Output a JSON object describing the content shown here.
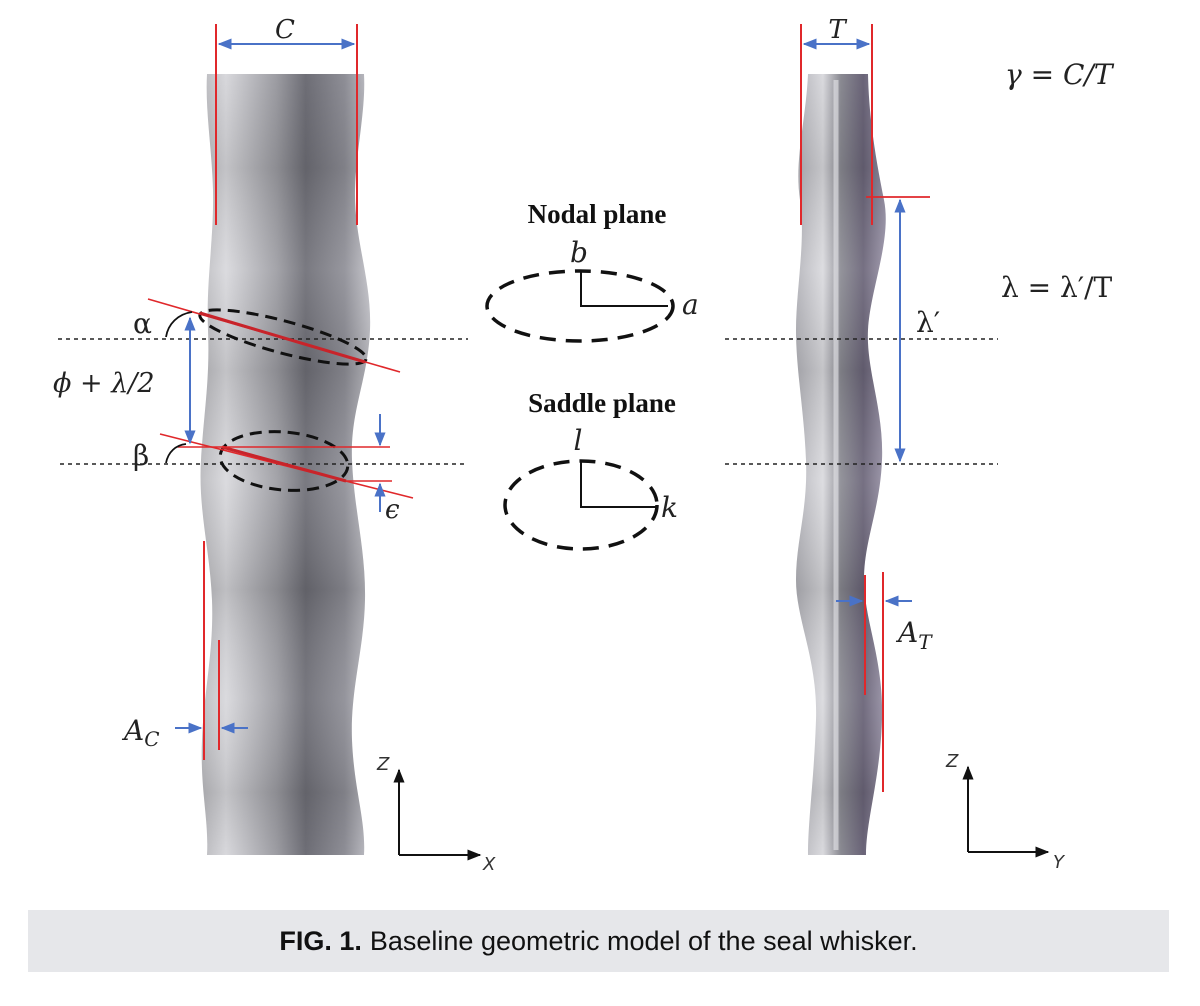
{
  "labels": {
    "C": "C",
    "T": "T",
    "gamma_eq": "γ = C/T",
    "lambda_eq": "λ = λ′/T",
    "lambda_prime": "λ′",
    "nodal_plane": "Nodal plane",
    "saddle_plane": "Saddle plane",
    "b": "b",
    "a": "a",
    "l": "l",
    "k": "k",
    "alpha": "α",
    "beta": "β",
    "phi": "ϕ + λ/2",
    "epsilon": "ϵ",
    "A_C_base": "A",
    "A_C_sub": "C",
    "A_T_base": "A",
    "A_T_sub": "T",
    "axis_z1": "Z",
    "axis_x": "X",
    "axis_z2": "Z",
    "axis_y": "Y"
  },
  "caption": {
    "label": "FIG. 1.",
    "text": "Baseline geometric model of the seal whisker."
  },
  "colors": {
    "red": "#e0282b",
    "blue": "#4a72c7",
    "dashed": "#222222"
  }
}
